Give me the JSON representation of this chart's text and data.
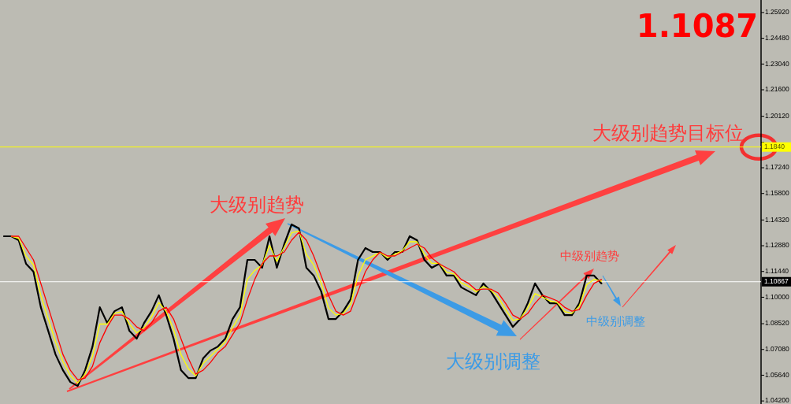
{
  "chart_data": {
    "type": "line",
    "tick_labels": "y",
    "marker": "none",
    "categories": [
      null,
      null,
      null,
      null,
      null,
      null,
      null,
      null,
      null,
      null,
      null,
      null,
      null,
      null,
      null,
      null,
      null,
      null,
      null,
      null,
      null,
      null,
      null,
      null,
      null,
      null,
      null,
      null,
      null,
      null,
      null,
      null,
      null,
      null,
      null,
      null,
      null,
      null,
      null,
      null,
      null,
      null,
      null,
      null,
      null,
      null,
      null,
      null,
      null,
      null,
      null,
      null,
      null,
      null,
      null,
      null,
      null,
      null,
      null,
      null,
      null,
      null,
      null,
      null,
      null,
      null,
      null,
      null,
      null,
      null,
      null,
      null,
      null,
      null,
      null,
      null,
      null,
      null,
      null,
      null,
      null,
      null,
      null,
      null,
      null,
      null,
      null,
      null,
      null,
      null,
      null,
      null,
      null,
      null,
      null,
      null,
      null,
      null,
      null,
      null,
      null,
      null
    ],
    "ylim": [
      1.0403,
      1.2662
    ],
    "yticks": [
      {
        "value": 1.2592,
        "label": "1.25920"
      },
      {
        "value": 1.2448,
        "label": "1.24480"
      },
      {
        "value": 1.2304,
        "label": "1.23040"
      },
      {
        "value": 1.216,
        "label": "1.21600"
      },
      {
        "value": 1.2012,
        "label": "1.20120"
      },
      {
        "value": 1.1866,
        "label": null
      },
      {
        "value": 1.1724,
        "label": "1.17240"
      },
      {
        "value": 1.158,
        "label": "1.15800"
      },
      {
        "value": 1.1432,
        "label": "1.14320"
      },
      {
        "value": 1.1288,
        "label": "1.12880"
      },
      {
        "value": 1.1144,
        "label": "1.11440"
      },
      {
        "value": 1.1,
        "label": "1.10000"
      },
      {
        "value": 1.0852,
        "label": "1.08520"
      },
      {
        "value": 1.0708,
        "label": "1.07080"
      },
      {
        "value": 1.0564,
        "label": "1.05640"
      },
      {
        "value": 1.042,
        "label": "1.04200"
      }
    ],
    "ref_lines": [
      {
        "axis": "y",
        "value": 1.184,
        "label": "1.1840",
        "color": "#ffff00"
      },
      {
        "axis": "y",
        "value": 1.10867,
        "label": "1.10867",
        "color": "#ffffff"
      }
    ],
    "annotations": [
      "1.1087",
      "大级别趋势目标位",
      "大级别趋势",
      "中级别趋势",
      "大级别调整",
      "中级别调整"
    ],
    "series": [
      {
        "color": "#000000",
        "values": [
          1.1341,
          1.1341,
          1.1319,
          1.1187,
          1.1143,
          1.0944,
          1.0812,
          1.068,
          1.0592,
          1.0526,
          1.0504,
          1.0592,
          1.0724,
          1.0944,
          1.0856,
          1.0922,
          1.0944,
          1.0812,
          1.0768,
          1.0856,
          1.0922,
          1.1011,
          1.09,
          1.0768,
          1.0592,
          1.0548,
          1.0548,
          1.0658,
          1.0702,
          1.0724,
          1.0768,
          1.0878,
          1.0944,
          1.1209,
          1.1209,
          1.1165,
          1.1341,
          1.1165,
          1.1297,
          1.1407,
          1.1385,
          1.1165,
          1.1121,
          1.1033,
          1.0878,
          1.0878,
          1.0922,
          1.0988,
          1.1209,
          1.1275,
          1.1253,
          1.1253,
          1.1209,
          1.1253,
          1.1253,
          1.1341,
          1.1319,
          1.1209,
          1.1165,
          1.1187,
          1.1121,
          1.1121,
          1.1055,
          1.1033,
          1.1011,
          1.1077,
          1.1033,
          1.0966,
          1.09,
          1.0834,
          1.0878,
          1.0966,
          1.1077,
          1.1011,
          1.0966,
          1.0966,
          1.09,
          1.09,
          1.0966,
          1.1121,
          1.1121,
          1.1077,
          null,
          null,
          null,
          null,
          null,
          null,
          null,
          null,
          null,
          null,
          null,
          null,
          null,
          null,
          null,
          null,
          null,
          null,
          null,
          null
        ]
      },
      {
        "color": "#ffff00",
        "values": [
          null,
          1.134,
          1.133,
          1.123,
          1.118,
          1.101,
          1.088,
          1.075,
          1.064,
          1.056,
          1.052,
          1.057,
          1.067,
          1.085,
          1.085,
          1.091,
          1.092,
          1.085,
          1.08,
          1.083,
          1.089,
          1.097,
          1.092,
          1.082,
          1.068,
          1.06,
          1.056,
          1.063,
          1.067,
          1.071,
          1.075,
          1.083,
          1.09,
          1.11,
          1.115,
          1.118,
          1.129,
          1.12,
          1.128,
          1.136,
          1.137,
          1.124,
          1.118,
          1.108,
          1.094,
          1.09,
          1.091,
          1.096,
          1.112,
          1.121,
          1.123,
          1.125,
          1.122,
          1.124,
          1.126,
          1.131,
          1.131,
          1.124,
          1.119,
          1.119,
          1.114,
          1.113,
          1.108,
          1.106,
          1.103,
          1.106,
          1.104,
          1.1,
          1.093,
          1.087,
          1.088,
          1.094,
          1.102,
          1.1,
          1.098,
          1.097,
          1.092,
          1.091,
          1.095,
          1.107,
          1.11,
          1.109,
          null,
          null,
          null,
          null,
          null,
          null,
          null,
          null,
          null,
          null,
          null,
          null,
          null,
          null,
          null,
          null,
          null,
          null,
          null,
          null
        ]
      },
      {
        "color": "#ff0000",
        "values": [
          null,
          1.1341,
          1.1341,
          1.1275,
          1.1209,
          1.1077,
          1.0944,
          1.0812,
          1.068,
          1.0592,
          1.0539,
          1.0548,
          1.0614,
          1.0746,
          1.0834,
          1.09,
          1.09,
          1.0878,
          1.0834,
          1.0812,
          1.0856,
          1.0922,
          1.0944,
          1.0878,
          1.0768,
          1.0658,
          1.057,
          1.0592,
          1.0636,
          1.0689,
          1.0724,
          1.079,
          1.0856,
          1.0988,
          1.1099,
          1.1187,
          1.1231,
          1.1231,
          1.1253,
          1.1319,
          1.1363,
          1.1319,
          1.1231,
          1.1121,
          1.1011,
          1.0922,
          1.09,
          1.0922,
          1.1033,
          1.1143,
          1.1209,
          1.1253,
          1.1231,
          1.1231,
          1.1253,
          1.1275,
          1.1297,
          1.1275,
          1.122,
          1.1187,
          1.1165,
          1.1143,
          1.1099,
          1.1077,
          1.1041,
          1.1045,
          1.1045,
          1.1024,
          1.0966,
          1.09,
          1.0878,
          1.0909,
          1.0966,
          1.1011,
          1.0997,
          1.098,
          1.0944,
          1.0922,
          1.0931,
          1.1011,
          1.1077,
          1.1099,
          null,
          null,
          null,
          null,
          null,
          null,
          null,
          null,
          null,
          null,
          null,
          null,
          null,
          null,
          null,
          null,
          null,
          null,
          null,
          null
        ]
      }
    ]
  }
}
